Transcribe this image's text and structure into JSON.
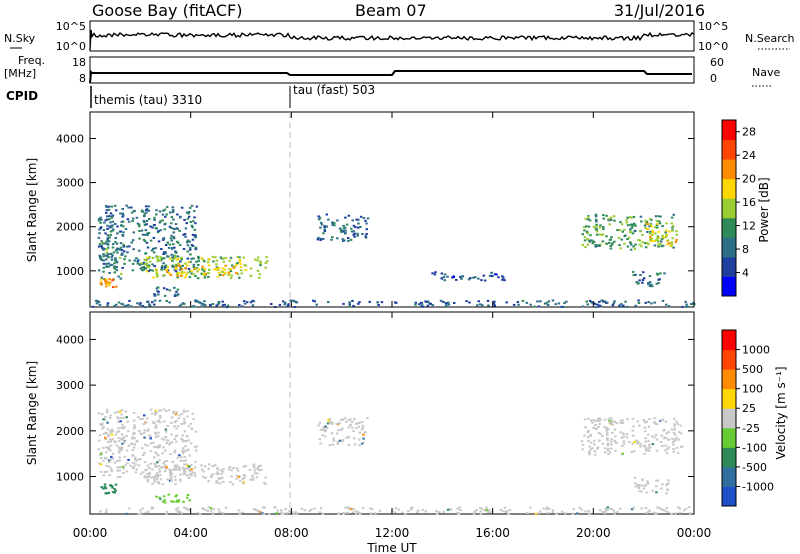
{
  "header": {
    "station": "Goose Bay (fitACF)",
    "beam": "Beam 07",
    "date": "31/Jul/2016"
  },
  "nsky_panel": {
    "left_label": "N.Sky",
    "right_label": "N.Search",
    "left_ticks": [
      "10^5",
      "10^0"
    ],
    "right_ticks": [
      "10^5",
      "10^0"
    ]
  },
  "freq_panel": {
    "left_label_1": "Freq.",
    "left_label_2": "[MHz]",
    "right_label": "Nave",
    "left_ticks": [
      "18",
      "8"
    ],
    "right_ticks": [
      "60",
      "0"
    ]
  },
  "cpid": {
    "label": "CPID",
    "modes": [
      {
        "name": "themis (tau) 3310",
        "start_hour": 0
      },
      {
        "name": "tau (fast) 503",
        "start_hour": 8
      }
    ]
  },
  "chart_data": [
    {
      "type": "heatmap",
      "name": "power",
      "ylabel": "Slant Range [km]",
      "xlabel": "Time UT",
      "xlim_hours": [
        0,
        24
      ],
      "ylim": [
        180,
        4600
      ],
      "yticks": [
        "1000",
        "2000",
        "3000",
        "4000"
      ],
      "xticks": [
        "00:00",
        "04:00",
        "08:00",
        "12:00",
        "16:00",
        "20:00",
        "00:00"
      ],
      "colorbar": {
        "label": "Power [dB]",
        "ticks": [
          "4",
          "8",
          "12",
          "16",
          "20",
          "24",
          "28"
        ],
        "range": [
          0,
          30
        ],
        "colors": [
          "#0000ff",
          "#1f3f9f",
          "#2e6f88",
          "#2e8b57",
          "#9acd32",
          "#ffd700",
          "#ff8c00",
          "#ff4500",
          "#ff0000"
        ]
      },
      "regions": [
        {
          "t0": 0.3,
          "t1": 4.2,
          "r0": 1000,
          "r1": 2500,
          "level": 8
        },
        {
          "t0": 0.4,
          "t1": 1.2,
          "r0": 700,
          "r1": 1700,
          "level": 10
        },
        {
          "t0": 0.3,
          "t1": 1.0,
          "r0": 650,
          "r1": 850,
          "level": 22
        },
        {
          "t0": 2.0,
          "t1": 7.0,
          "r0": 850,
          "r1": 1350,
          "level": 14
        },
        {
          "t0": 3.0,
          "t1": 5.8,
          "r0": 900,
          "r1": 1150,
          "level": 20
        },
        {
          "t0": 2.5,
          "t1": 3.5,
          "r0": 450,
          "r1": 650,
          "level": 8
        },
        {
          "t0": 9.0,
          "t1": 11.0,
          "r0": 1700,
          "r1": 2300,
          "level": 7
        },
        {
          "t0": 13.5,
          "t1": 16.5,
          "r0": 800,
          "r1": 1000,
          "level": 5
        },
        {
          "t0": 19.5,
          "t1": 23.2,
          "r0": 1500,
          "r1": 2300,
          "level": 12
        },
        {
          "t0": 22.0,
          "t1": 23.3,
          "r0": 1600,
          "r1": 2100,
          "level": 18
        },
        {
          "t0": 21.5,
          "t1": 22.8,
          "r0": 650,
          "r1": 1000,
          "level": 8
        },
        {
          "t0": 0.0,
          "t1": 24.0,
          "r0": 200,
          "r1": 350,
          "level": 6
        }
      ]
    },
    {
      "type": "heatmap",
      "name": "velocity",
      "ylabel": "Slant Range [km]",
      "xlabel": "Time UT",
      "xlim_hours": [
        0,
        24
      ],
      "ylim": [
        180,
        4600
      ],
      "yticks": [
        "1000",
        "2000",
        "3000",
        "4000"
      ],
      "xticks": [
        "00:00",
        "04:00",
        "08:00",
        "12:00",
        "16:00",
        "20:00",
        "00:00"
      ],
      "colorbar": {
        "label": "Velocity [m s⁻¹]",
        "ticks": [
          "1000",
          "500",
          "100",
          "25",
          "-25",
          "-100",
          "-500",
          "-1000"
        ],
        "colors": [
          "#1e50c8",
          "#2e6fa0",
          "#2e8b57",
          "#66cc33",
          "#c8c8c8",
          "#ffd700",
          "#ff8c00",
          "#ff4500",
          "#ff0000"
        ]
      },
      "regions": [
        {
          "t0": 0.3,
          "t1": 4.2,
          "r0": 1000,
          "r1": 2500,
          "color": "#c8c8c8"
        },
        {
          "t0": 0.4,
          "t1": 1.0,
          "r0": 650,
          "r1": 850,
          "color": "#2e8b57"
        },
        {
          "t0": 2.0,
          "t1": 7.0,
          "r0": 850,
          "r1": 1300,
          "color": "#c8c8c8"
        },
        {
          "t0": 2.5,
          "t1": 4.0,
          "r0": 450,
          "r1": 650,
          "color": "#66cc33"
        },
        {
          "t0": 9.0,
          "t1": 11.0,
          "r0": 1700,
          "r1": 2300,
          "color": "#c8c8c8"
        },
        {
          "t0": 19.5,
          "t1": 23.5,
          "r0": 1500,
          "r1": 2300,
          "color": "#c8c8c8"
        },
        {
          "t0": 21.5,
          "t1": 23.0,
          "r0": 650,
          "r1": 1000,
          "color": "#c8c8c8"
        },
        {
          "t0": 0.0,
          "t1": 24.0,
          "r0": 200,
          "r1": 350,
          "color": "#c8c8c8"
        }
      ]
    }
  ]
}
